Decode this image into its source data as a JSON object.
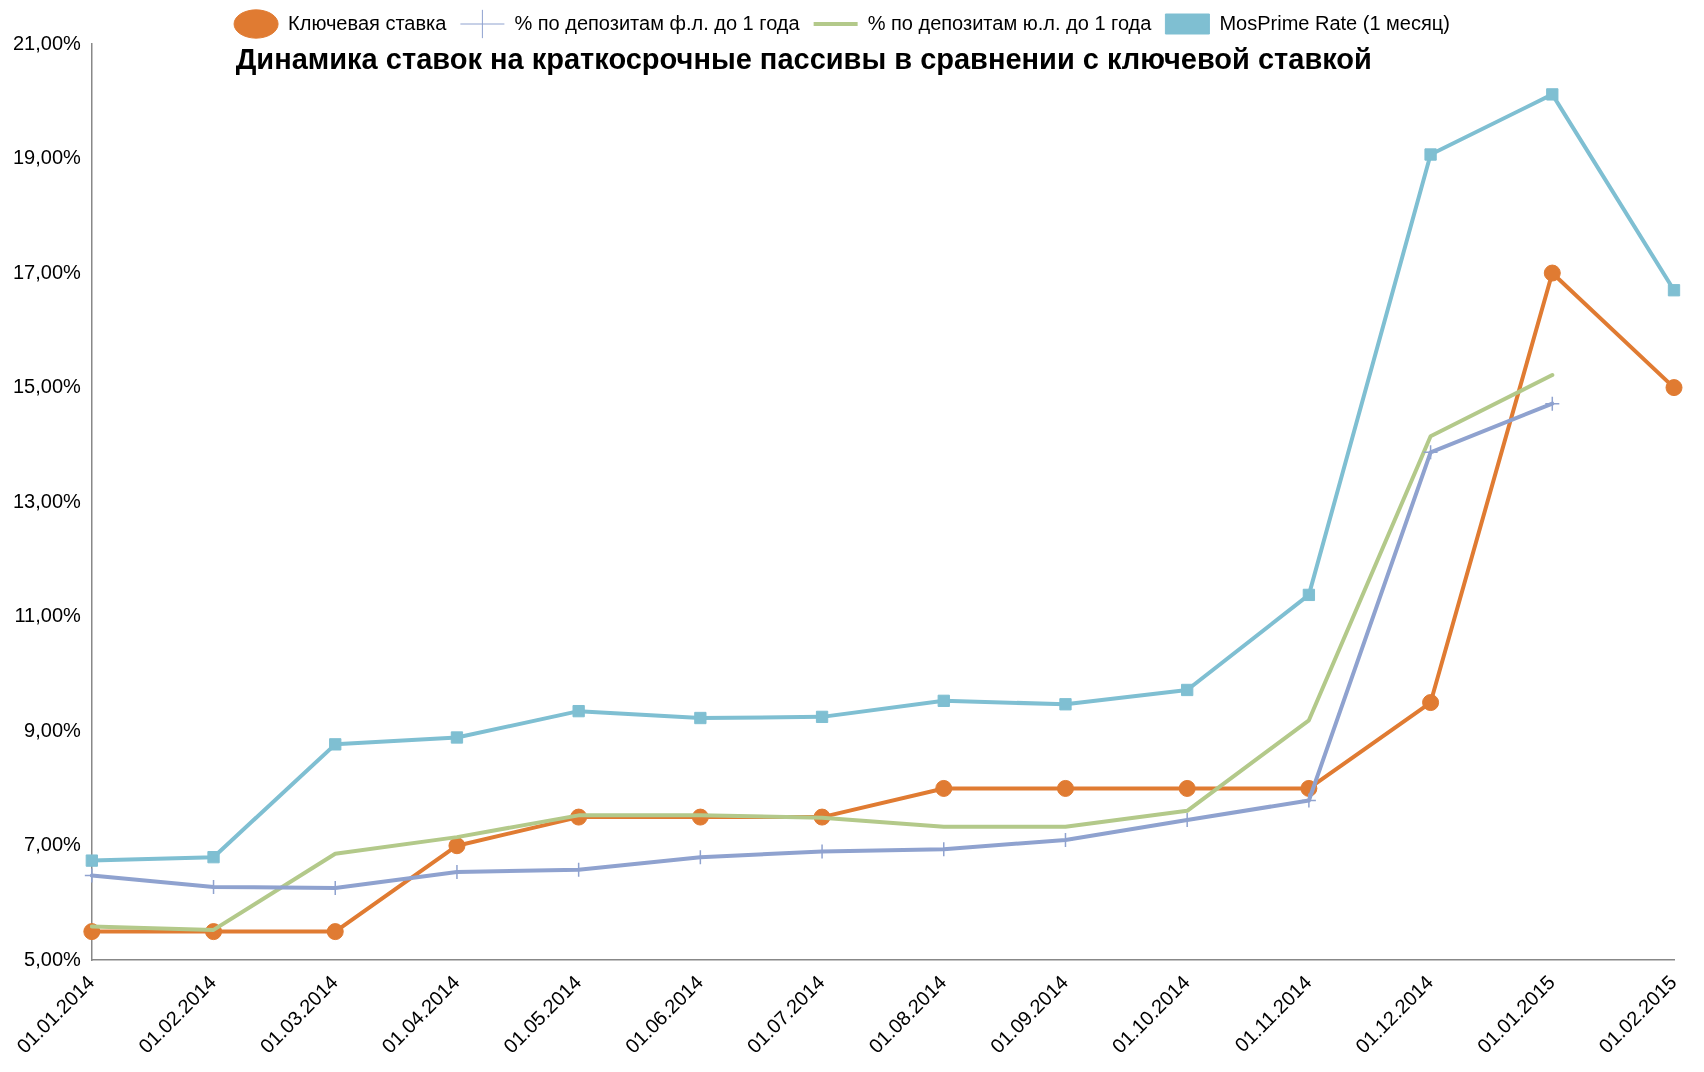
{
  "chart_data": {
    "type": "line",
    "title": "Динамика ставок на краткосрочные пассивы в сравнении с ключевой ставкой",
    "categories": [
      "01.01.2014",
      "01.02.2014",
      "01.03.2014",
      "01.04.2014",
      "01.05.2014",
      "01.06.2014",
      "01.07.2014",
      "01.08.2014",
      "01.09.2014",
      "01.10.2014",
      "01.11.2014",
      "01.12.2014",
      "01.01.2015",
      "01.02.2015"
    ],
    "series": [
      {
        "name": "Ключевая ставка",
        "color": "#e07b32",
        "marker": "circle",
        "values": [
          5.5,
          5.5,
          5.5,
          7,
          7.5,
          7.5,
          7.5,
          8,
          8,
          8,
          8,
          9.5,
          17,
          15
        ]
      },
      {
        "name": "% по депозитам ф.л. до 1 года",
        "color": "#8fa2cf",
        "marker": "cross",
        "values": [
          6.48,
          6.28,
          6.26,
          6.54,
          6.58,
          6.8,
          6.9,
          6.94,
          7.1,
          7.45,
          7.79,
          13.87,
          14.72,
          null
        ]
      },
      {
        "name": "% по депозитам ю.л. до 1 года",
        "color": "#b3c98a",
        "marker": "none",
        "values": [
          5.59,
          5.53,
          6.86,
          7.15,
          7.53,
          7.53,
          7.49,
          7.33,
          7.33,
          7.61,
          9.19,
          14.15,
          15.22,
          null
        ]
      },
      {
        "name": "MosPrime Rate (1 месяц)",
        "color": "#7fbfd2",
        "marker": "square",
        "values": [
          6.74,
          6.8,
          8.77,
          8.89,
          9.35,
          9.23,
          9.25,
          9.53,
          9.47,
          9.72,
          11.38,
          19.07,
          20.12,
          16.7
        ]
      }
    ],
    "ylim": [
      5,
      21
    ],
    "yticks": [
      {
        "value": 5,
        "label": "5,00%"
      },
      {
        "value": 7,
        "label": "7,00%"
      },
      {
        "value": 9,
        "label": "9,00%"
      },
      {
        "value": 11,
        "label": "11,00%"
      },
      {
        "value": 13,
        "label": "13,00%"
      },
      {
        "value": 15,
        "label": "15,00%"
      },
      {
        "value": 17,
        "label": "17,00%"
      },
      {
        "value": 19,
        "label": "19,00%"
      },
      {
        "value": 21,
        "label": "21,00%"
      }
    ],
    "grid": false,
    "legend": "top",
    "line_style": "solid"
  }
}
